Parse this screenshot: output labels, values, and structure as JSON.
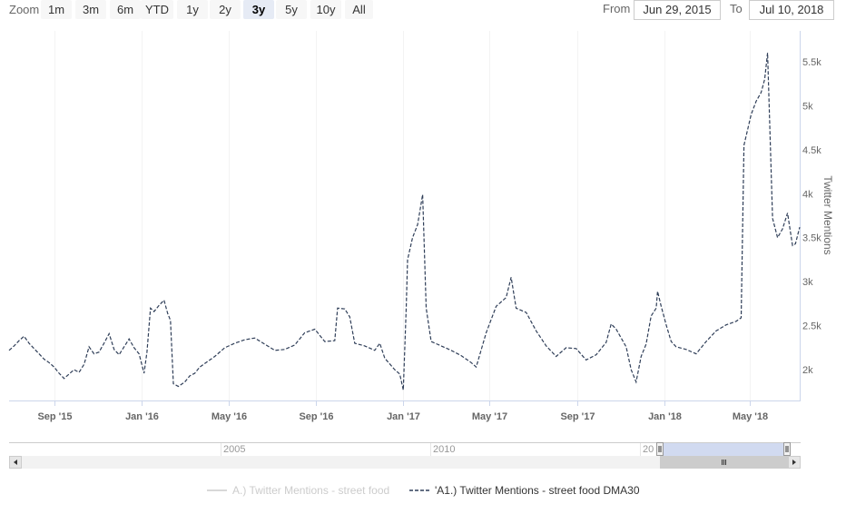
{
  "range_selector": {
    "zoom_label": "Zoom",
    "buttons": [
      {
        "label": "1m",
        "selected": false
      },
      {
        "label": "3m",
        "selected": false
      },
      {
        "label": "6m",
        "selected": false
      },
      {
        "label": "YTD",
        "selected": false
      },
      {
        "label": "1y",
        "selected": false
      },
      {
        "label": "2y",
        "selected": false
      },
      {
        "label": "3y",
        "selected": true
      },
      {
        "label": "5y",
        "selected": false
      },
      {
        "label": "10y",
        "selected": false
      },
      {
        "label": "All",
        "selected": false
      }
    ],
    "from_label": "From",
    "from_value": "Jun 29, 2015",
    "to_label": "To",
    "to_value": "Jul 10, 2018"
  },
  "navigator": {
    "year_labels": [
      "2005",
      "2010",
      "20"
    ]
  },
  "colors": {
    "series_line": "#2f3e58",
    "hidden_series": "#cccccc",
    "selected_button": "#e6ebf5",
    "navigator_mask": "#c5d1ec"
  },
  "chart_data": {
    "type": "line",
    "title": "",
    "xlabel": "",
    "ylabel": "Twitter Mentions",
    "x_range": [
      "2015-06-29",
      "2018-07-10"
    ],
    "ylim": [
      1650,
      5850
    ],
    "grid": {
      "vertical": true,
      "horizontal": false
    },
    "y_ticks": [
      {
        "value": 2000,
        "label": "2k"
      },
      {
        "value": 2500,
        "label": "2.5k"
      },
      {
        "value": 3000,
        "label": "3k"
      },
      {
        "value": 3500,
        "label": "3.5k"
      },
      {
        "value": 4000,
        "label": "4k"
      },
      {
        "value": 4500,
        "label": "4.5k"
      },
      {
        "value": 5000,
        "label": "5k"
      },
      {
        "value": 5500,
        "label": "5.5k"
      }
    ],
    "x_ticks": [
      {
        "date": "2015-09-01",
        "label": "Sep '15"
      },
      {
        "date": "2016-01-01",
        "label": "Jan '16"
      },
      {
        "date": "2016-05-01",
        "label": "May '16"
      },
      {
        "date": "2016-09-01",
        "label": "Sep '16"
      },
      {
        "date": "2017-01-01",
        "label": "Jan '17"
      },
      {
        "date": "2017-05-01",
        "label": "May '17"
      },
      {
        "date": "2017-09-01",
        "label": "Sep '17"
      },
      {
        "date": "2018-01-01",
        "label": "Jan '18"
      },
      {
        "date": "2018-05-01",
        "label": "May '18"
      }
    ],
    "legend_position": "bottom-center",
    "series": [
      {
        "name": "A.) Twitter Mentions - street food",
        "visible": false,
        "style": "solid",
        "points": []
      },
      {
        "name": "'A1.) Twitter Mentions - street food DMA30",
        "visible": true,
        "style": "dashed",
        "points": [
          [
            "2015-06-29",
            2220
          ],
          [
            "2015-07-06",
            2270
          ],
          [
            "2015-07-13",
            2330
          ],
          [
            "2015-07-20",
            2380
          ],
          [
            "2015-07-27",
            2300
          ],
          [
            "2015-08-03",
            2240
          ],
          [
            "2015-08-10",
            2180
          ],
          [
            "2015-08-17",
            2120
          ],
          [
            "2015-08-24",
            2080
          ],
          [
            "2015-08-31",
            2030
          ],
          [
            "2015-09-07",
            1960
          ],
          [
            "2015-09-14",
            1900
          ],
          [
            "2015-09-21",
            1950
          ],
          [
            "2015-09-28",
            2000
          ],
          [
            "2015-10-05",
            1970
          ],
          [
            "2015-10-12",
            2060
          ],
          [
            "2015-10-19",
            2260
          ],
          [
            "2015-10-26",
            2180
          ],
          [
            "2015-11-02",
            2200
          ],
          [
            "2015-11-09",
            2300
          ],
          [
            "2015-11-16",
            2410
          ],
          [
            "2015-11-23",
            2230
          ],
          [
            "2015-11-30",
            2170
          ],
          [
            "2015-12-07",
            2260
          ],
          [
            "2015-12-14",
            2350
          ],
          [
            "2015-12-21",
            2250
          ],
          [
            "2015-12-28",
            2180
          ],
          [
            "2016-01-04",
            1960
          ],
          [
            "2016-01-08",
            2200
          ],
          [
            "2016-01-13",
            2700
          ],
          [
            "2016-01-18",
            2660
          ],
          [
            "2016-01-25",
            2730
          ],
          [
            "2016-02-01",
            2790
          ],
          [
            "2016-02-06",
            2640
          ],
          [
            "2016-02-10",
            2560
          ],
          [
            "2016-02-14",
            1840
          ],
          [
            "2016-02-21",
            1810
          ],
          [
            "2016-03-01",
            1860
          ],
          [
            "2016-03-08",
            1930
          ],
          [
            "2016-03-15",
            1960
          ],
          [
            "2016-03-22",
            2030
          ],
          [
            "2016-03-29",
            2070
          ],
          [
            "2016-04-12",
            2150
          ],
          [
            "2016-04-26",
            2250
          ],
          [
            "2016-05-10",
            2300
          ],
          [
            "2016-05-24",
            2340
          ],
          [
            "2016-06-07",
            2360
          ],
          [
            "2016-06-21",
            2290
          ],
          [
            "2016-07-05",
            2220
          ],
          [
            "2016-07-19",
            2230
          ],
          [
            "2016-08-02",
            2280
          ],
          [
            "2016-08-16",
            2420
          ],
          [
            "2016-08-30",
            2460
          ],
          [
            "2016-09-13",
            2320
          ],
          [
            "2016-09-27",
            2330
          ],
          [
            "2016-10-01",
            2700
          ],
          [
            "2016-10-11",
            2690
          ],
          [
            "2016-10-18",
            2600
          ],
          [
            "2016-10-25",
            2300
          ],
          [
            "2016-11-08",
            2270
          ],
          [
            "2016-11-22",
            2220
          ],
          [
            "2016-11-29",
            2300
          ],
          [
            "2016-12-06",
            2130
          ],
          [
            "2016-12-20",
            2000
          ],
          [
            "2016-12-27",
            1950
          ],
          [
            "2017-01-01",
            1770
          ],
          [
            "2017-01-05",
            2700
          ],
          [
            "2017-01-07",
            3250
          ],
          [
            "2017-01-14",
            3500
          ],
          [
            "2017-01-21",
            3650
          ],
          [
            "2017-01-28",
            3990
          ],
          [
            "2017-02-02",
            2700
          ],
          [
            "2017-02-09",
            2320
          ],
          [
            "2017-02-23",
            2270
          ],
          [
            "2017-03-09",
            2220
          ],
          [
            "2017-03-23",
            2160
          ],
          [
            "2017-04-06",
            2080
          ],
          [
            "2017-04-13",
            2030
          ],
          [
            "2017-04-27",
            2420
          ],
          [
            "2017-05-11",
            2720
          ],
          [
            "2017-05-25",
            2820
          ],
          [
            "2017-06-01",
            3050
          ],
          [
            "2017-06-08",
            2700
          ],
          [
            "2017-06-22",
            2650
          ],
          [
            "2017-07-06",
            2440
          ],
          [
            "2017-07-20",
            2270
          ],
          [
            "2017-08-03",
            2150
          ],
          [
            "2017-08-17",
            2250
          ],
          [
            "2017-08-31",
            2240
          ],
          [
            "2017-09-14",
            2110
          ],
          [
            "2017-09-28",
            2170
          ],
          [
            "2017-10-12",
            2310
          ],
          [
            "2017-10-19",
            2520
          ],
          [
            "2017-10-26",
            2460
          ],
          [
            "2017-11-09",
            2260
          ],
          [
            "2017-11-16",
            2000
          ],
          [
            "2017-11-23",
            1860
          ],
          [
            "2017-11-30",
            2150
          ],
          [
            "2017-12-07",
            2290
          ],
          [
            "2017-12-14",
            2610
          ],
          [
            "2017-12-21",
            2700
          ],
          [
            "2017-12-23",
            2890
          ],
          [
            "2017-12-28",
            2720
          ],
          [
            "2018-01-04",
            2510
          ],
          [
            "2018-01-11",
            2320
          ],
          [
            "2018-01-18",
            2260
          ],
          [
            "2018-02-01",
            2230
          ],
          [
            "2018-02-15",
            2180
          ],
          [
            "2018-03-01",
            2320
          ],
          [
            "2018-03-15",
            2440
          ],
          [
            "2018-03-29",
            2510
          ],
          [
            "2018-04-12",
            2550
          ],
          [
            "2018-04-19",
            2590
          ],
          [
            "2018-04-23",
            4550
          ],
          [
            "2018-05-03",
            4900
          ],
          [
            "2018-05-10",
            5050
          ],
          [
            "2018-05-17",
            5150
          ],
          [
            "2018-05-22",
            5300
          ],
          [
            "2018-05-26",
            5600
          ],
          [
            "2018-06-02",
            3720
          ],
          [
            "2018-06-09",
            3500
          ],
          [
            "2018-06-16",
            3600
          ],
          [
            "2018-06-23",
            3780
          ],
          [
            "2018-06-30",
            3410
          ],
          [
            "2018-07-04",
            3430
          ],
          [
            "2018-07-10",
            3620
          ]
        ]
      }
    ]
  }
}
